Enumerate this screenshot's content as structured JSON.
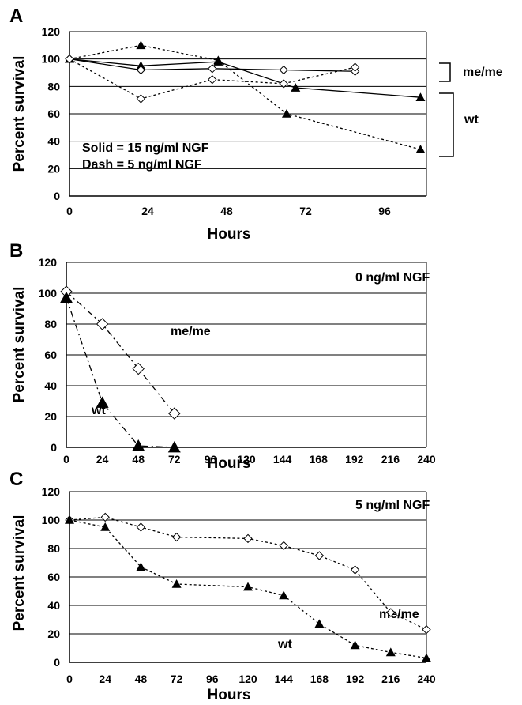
{
  "chart_data": [
    {
      "panel": "A",
      "type": "line",
      "xlabel": "Hours",
      "ylabel": "Percent survival",
      "xticks": [
        0,
        24,
        48,
        72,
        96
      ],
      "yticks": [
        0,
        20,
        40,
        60,
        80,
        100,
        120
      ],
      "xlim": [
        0,
        120
      ],
      "ylim": [
        0,
        120
      ],
      "grid": "horizontal",
      "annotations": [
        "Solid = 15 ng/ml NGF",
        "Dash = 5 ng/ml NGF"
      ],
      "bracket_labels": [
        "me/me",
        "wt"
      ],
      "series": [
        {
          "marker": "triangle",
          "color": "#000000",
          "style": "solid",
          "x": [
            0,
            24,
            50,
            76,
            118
          ],
          "y": [
            100,
            95,
            98,
            79,
            72
          ]
        },
        {
          "marker": "triangle",
          "color": "#000000",
          "style": "dotted",
          "x": [
            0,
            24,
            50,
            73,
            118
          ],
          "y": [
            100,
            110,
            99,
            60,
            34
          ]
        },
        {
          "marker": "diamond",
          "color": "#000000",
          "style": "solid",
          "x": [
            0,
            24,
            48,
            72,
            96
          ],
          "y": [
            100,
            92,
            93,
            92,
            91
          ]
        },
        {
          "marker": "diamond",
          "color": "#000000",
          "style": "dotted",
          "x": [
            0,
            24,
            48,
            72,
            96
          ],
          "y": [
            100,
            71,
            85,
            82,
            94
          ]
        }
      ]
    },
    {
      "panel": "B",
      "type": "line",
      "xlabel": "Hours",
      "ylabel": "Percent survival",
      "xticks": [
        0,
        24,
        48,
        72,
        96,
        120,
        144,
        168,
        192,
        216,
        240
      ],
      "yticks": [
        0,
        20,
        40,
        60,
        80,
        100,
        120
      ],
      "xlim": [
        0,
        240
      ],
      "ylim": [
        0,
        120
      ],
      "grid": "horizontal",
      "annotations": [
        "0 ng/ml NGF"
      ],
      "series": [
        {
          "name": "me/me",
          "marker": "diamond",
          "color": "#000000",
          "style": "dashdot",
          "x": [
            0,
            24,
            48,
            72
          ],
          "y": [
            101,
            80,
            51,
            22
          ]
        },
        {
          "name": "wt",
          "marker": "triangle",
          "color": "#000000",
          "style": "dashdot",
          "x": [
            0,
            24,
            48,
            72
          ],
          "y": [
            97,
            29,
            1,
            0
          ]
        }
      ]
    },
    {
      "panel": "C",
      "type": "line",
      "xlabel": "Hours",
      "ylabel": "Percent survival",
      "xticks": [
        0,
        24,
        48,
        72,
        96,
        120,
        144,
        168,
        192,
        216,
        240
      ],
      "yticks": [
        0,
        20,
        40,
        60,
        80,
        100,
        120
      ],
      "xlim": [
        0,
        240
      ],
      "ylim": [
        0,
        120
      ],
      "grid": "horizontal",
      "annotations": [
        "5 ng/ml NGF"
      ],
      "series": [
        {
          "name": "me/me",
          "marker": "diamond",
          "color": "#000000",
          "style": "dotted",
          "x": [
            0,
            24,
            48,
            72,
            120,
            144,
            168,
            192,
            216,
            240
          ],
          "y": [
            100,
            102,
            95,
            88,
            87,
            82,
            75,
            65,
            35,
            23
          ]
        },
        {
          "name": "wt",
          "marker": "triangle",
          "color": "#000000",
          "style": "dotted",
          "x": [
            0,
            24,
            48,
            72,
            120,
            144,
            168,
            192,
            216,
            240
          ],
          "y": [
            100,
            95,
            67,
            55,
            53,
            47,
            27,
            12,
            7,
            3
          ]
        }
      ]
    }
  ]
}
